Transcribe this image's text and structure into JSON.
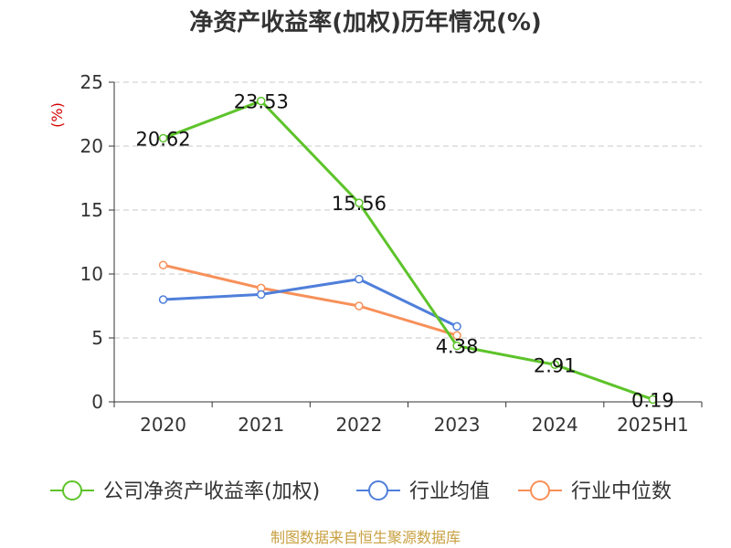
{
  "chart_data": {
    "type": "line",
    "title": "净资产收益率(加权)历年情况(%)",
    "ylabel": "(%)",
    "categories": [
      "2020",
      "2021",
      "2022",
      "2023",
      "2024",
      "2025H1"
    ],
    "yticks": [
      "0",
      "5",
      "10",
      "15",
      "20",
      "25"
    ],
    "ylim": [
      0,
      25
    ],
    "grid": true,
    "legend_position": "bottom",
    "series": [
      {
        "name": "公司净资产收益率(加权)",
        "color": "#5dc32a",
        "values": [
          20.62,
          23.53,
          15.56,
          4.38,
          2.91,
          0.19
        ],
        "labels": [
          "20.62",
          "23.53",
          "15.56",
          "4.38",
          "2.91",
          "0.19"
        ]
      },
      {
        "name": "行业均值",
        "color": "#4f7fda",
        "values": [
          8.0,
          8.4,
          9.6,
          5.9,
          null,
          null
        ]
      },
      {
        "name": "行业中位数",
        "color": "#f79059",
        "values": [
          10.7,
          8.9,
          7.5,
          5.2,
          null,
          null
        ]
      }
    ]
  },
  "source": "制图数据来自恒生聚源数据库"
}
